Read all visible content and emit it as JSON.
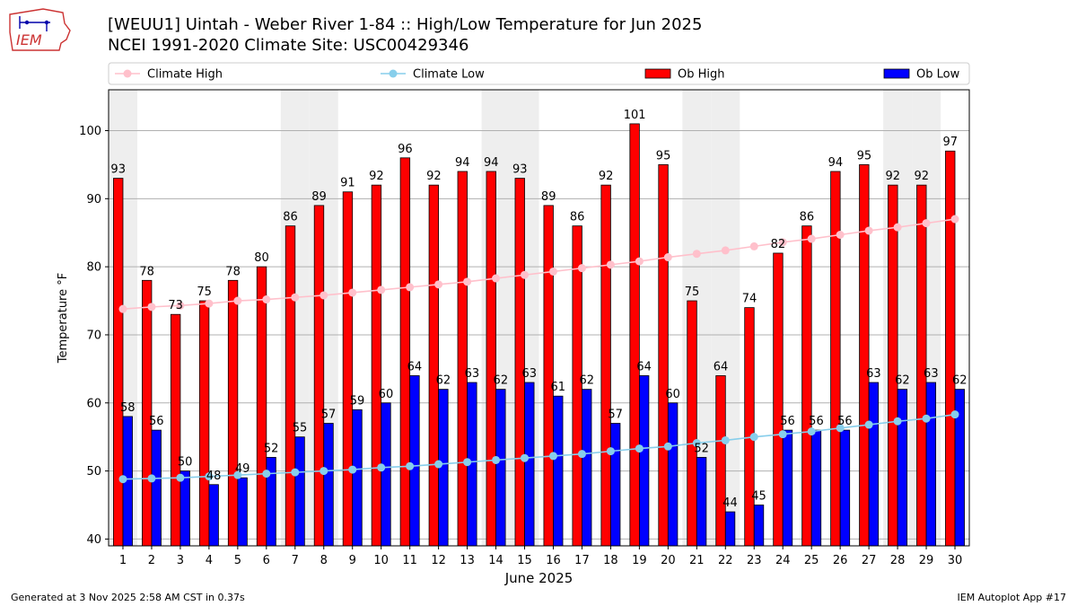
{
  "header": {
    "title_line1": "[WEUU1] Uintah - Weber River 1-84 :: High/Low Temperature for Jun 2025",
    "title_line2": "NCEI 1991-2020 Climate Site: USC00429346"
  },
  "logo": {
    "text": "IEM",
    "icon": "iem-iowa-logo-icon"
  },
  "footer": {
    "left": "Generated at 3 Nov 2025 2:58 AM CST in 0.37s",
    "right": "IEM Autoplot App #17"
  },
  "colors": {
    "ob_high": "#ff0000",
    "ob_low": "#0000ff",
    "climate_high": "#ffc0cb",
    "climate_low": "#87ceeb",
    "weekend_band": "#eeeeee",
    "grid": "#b0b0b0"
  },
  "chart_data": {
    "type": "bar",
    "title": "[WEUU1] Uintah - Weber River 1-84 :: High/Low Temperature for Jun 2025",
    "xlabel": "June 2025",
    "ylabel": "Temperature °F",
    "ylim": [
      39,
      106
    ],
    "yticks": [
      40,
      50,
      60,
      70,
      80,
      90,
      100
    ],
    "grid": true,
    "legend_position": "top",
    "categories": [
      "1",
      "2",
      "3",
      "4",
      "5",
      "6",
      "7",
      "8",
      "9",
      "10",
      "11",
      "12",
      "13",
      "14",
      "15",
      "16",
      "17",
      "18",
      "19",
      "20",
      "21",
      "22",
      "23",
      "24",
      "25",
      "26",
      "27",
      "28",
      "29",
      "30"
    ],
    "shaded_days": [
      "1",
      "7",
      "8",
      "14",
      "15",
      "21",
      "22",
      "28",
      "29"
    ],
    "series": [
      {
        "name": "Ob High",
        "kind": "bar",
        "color": "#ff0000",
        "values": [
          93,
          78,
          73,
          75,
          78,
          80,
          86,
          89,
          91,
          92,
          96,
          92,
          94,
          94,
          93,
          89,
          86,
          92,
          101,
          95,
          75,
          64,
          74,
          82,
          86,
          94,
          95,
          92,
          92,
          97
        ],
        "labels": [
          "93",
          "78",
          "73",
          "75",
          "78",
          "80",
          "86",
          "89",
          "91",
          "92",
          "96",
          "92",
          "94",
          "94",
          "93",
          "89",
          "86",
          "92",
          "101",
          "95",
          "75",
          "64",
          "74",
          "82",
          "86",
          "94",
          "95",
          "92",
          "92",
          "97"
        ]
      },
      {
        "name": "Ob Low",
        "kind": "bar",
        "color": "#0000ff",
        "values": [
          58,
          56,
          50,
          48,
          49,
          52,
          55,
          57,
          59,
          60,
          64,
          62,
          63,
          62,
          63,
          61,
          62,
          57,
          64,
          60,
          52,
          44,
          45,
          56,
          56,
          56,
          63,
          62,
          63,
          62
        ],
        "labels": [
          "58",
          "56",
          "50",
          "48",
          "49",
          "52",
          "55",
          "57",
          "59",
          "60",
          "64",
          "62",
          "63",
          "62",
          "63",
          "61",
          "62",
          "57",
          "64",
          "60",
          "52",
          "44",
          "45",
          "56",
          "56",
          "56",
          "63",
          "62",
          "63",
          "62"
        ]
      },
      {
        "name": "Climate High",
        "kind": "line",
        "color": "#ffc0cb",
        "values": [
          73.8,
          74.1,
          74.3,
          74.6,
          75.0,
          75.2,
          75.5,
          75.8,
          76.2,
          76.6,
          77.0,
          77.4,
          77.8,
          78.3,
          78.8,
          79.3,
          79.8,
          80.3,
          80.8,
          81.4,
          81.9,
          82.4,
          83.0,
          83.6,
          84.1,
          84.7,
          85.3,
          85.8,
          86.4,
          87.0
        ]
      },
      {
        "name": "Climate Low",
        "kind": "line",
        "color": "#87ceeb",
        "values": [
          48.8,
          48.9,
          49.0,
          49.2,
          49.4,
          49.6,
          49.8,
          50.0,
          50.2,
          50.5,
          50.7,
          51.0,
          51.3,
          51.6,
          51.9,
          52.2,
          52.5,
          52.9,
          53.3,
          53.6,
          54.1,
          54.5,
          55.0,
          55.4,
          55.8,
          56.3,
          56.8,
          57.3,
          57.7,
          58.3
        ]
      }
    ]
  }
}
